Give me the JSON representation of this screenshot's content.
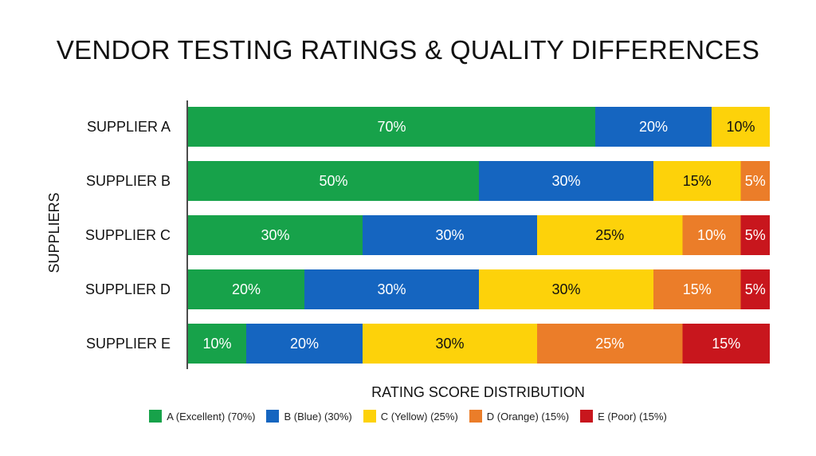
{
  "chart_data": {
    "type": "bar",
    "orientation": "horizontal",
    "stacked": true,
    "title": "VENDOR TESTING RATINGS & QUALITY DIFFERENCES",
    "xlabel": "RATING SCORE DISTRIBUTION",
    "ylabel": "SUPPLIERS",
    "xlim": [
      0,
      100
    ],
    "grid": false,
    "legend_position": "bottom",
    "categories": [
      "SUPPLIER A",
      "SUPPLIER B",
      "SUPPLIER C",
      "SUPPLIER D",
      "SUPPLIER E"
    ],
    "series": [
      {
        "name": "A (Excellent) (70%)",
        "color": "#17a24a",
        "label_color": "#ffffff",
        "values": [
          70,
          50,
          30,
          20,
          10
        ]
      },
      {
        "name": "B (Blue) (30%)",
        "color": "#1565c0",
        "label_color": "#ffffff",
        "values": [
          20,
          30,
          30,
          30,
          20
        ]
      },
      {
        "name": "C (Yellow) (25%)",
        "color": "#fdd20a",
        "label_color": "#111111",
        "values": [
          10,
          15,
          25,
          30,
          30
        ]
      },
      {
        "name": "D (Orange) (15%)",
        "color": "#eb7d29",
        "label_color": "#ffffff",
        "values": [
          0,
          5,
          10,
          15,
          25
        ]
      },
      {
        "name": "E (Poor) (15%)",
        "color": "#c8161d",
        "label_color": "#ffffff",
        "values": [
          0,
          0,
          5,
          5,
          15
        ]
      }
    ]
  }
}
